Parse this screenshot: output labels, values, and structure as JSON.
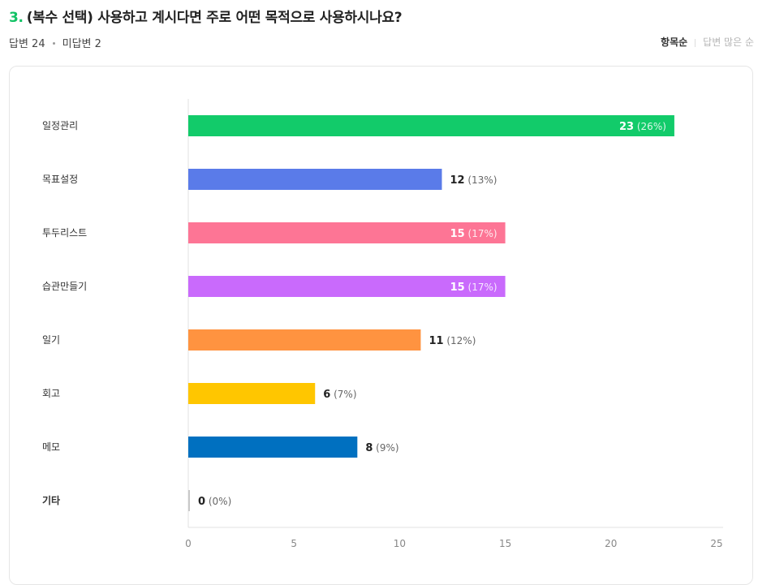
{
  "question": {
    "number": "3.",
    "title": "(복수 선택) 사용하고 계시다면 주로 어떤 목적으로 사용하시나요?"
  },
  "summary": {
    "answered": "답변 24",
    "unanswered": "미답변 2"
  },
  "sort": {
    "by_item": "항목순",
    "by_answers": "답변 많은 순",
    "selected": "항목순"
  },
  "chart_data": {
    "type": "bar",
    "orientation": "horizontal",
    "categories": [
      "일정관리",
      "목표설정",
      "투두리스트",
      "습관만들기",
      "일기",
      "회고",
      "메모",
      "기타"
    ],
    "values": [
      23,
      12,
      15,
      15,
      11,
      6,
      8,
      0
    ],
    "percent_labels": [
      "(26%)",
      "(13%)",
      "(17%)",
      "(17%)",
      "(12%)",
      "(7%)",
      "(9%)",
      "(0%)"
    ],
    "colors": [
      "#12cb6a",
      "#5a7be9",
      "#fd7595",
      "#c96afc",
      "#ff9340",
      "#ffc600",
      "#0070c0",
      "#c8c8c8"
    ],
    "label_inside": [
      true,
      false,
      true,
      true,
      false,
      false,
      false,
      false
    ],
    "xlim": [
      0,
      25
    ],
    "xticks": [
      0,
      5,
      10,
      15,
      20,
      25
    ],
    "grid": false,
    "legend": "none"
  }
}
